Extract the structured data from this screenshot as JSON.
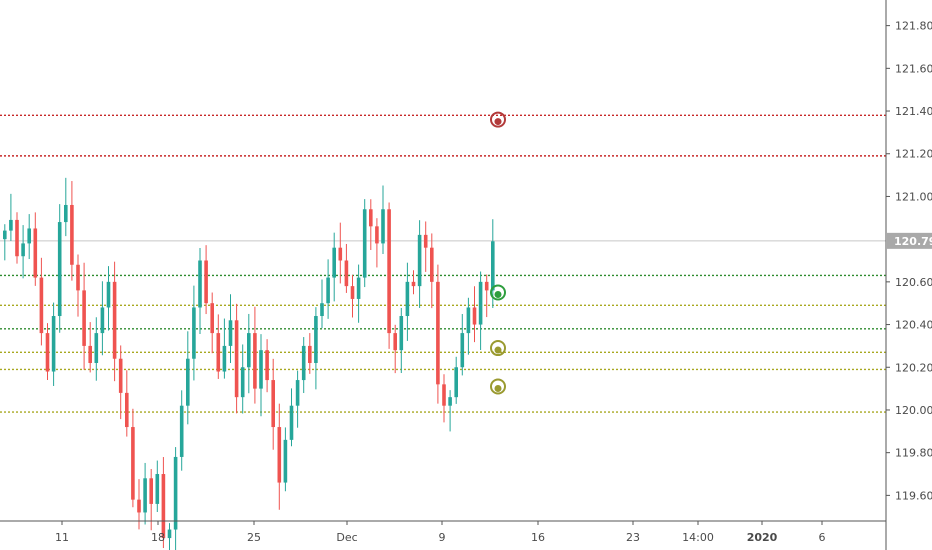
{
  "chart_data": {
    "type": "candlestick",
    "instrument_last_price": "120.792",
    "y_axis": {
      "ylim": [
        119.48,
        121.92
      ],
      "tick_labels": [
        "121.800",
        "121.600",
        "121.400",
        "121.200",
        "121.000",
        "120.600",
        "120.400",
        "120.200",
        "120.000",
        "119.800",
        "119.600"
      ],
      "tick_values": [
        121.8,
        121.6,
        121.4,
        121.2,
        121.0,
        120.6,
        120.4,
        120.2,
        120.0,
        119.8,
        119.6
      ]
    },
    "x_axis": {
      "tick_labels": [
        "11",
        "18",
        "25",
        "Dec",
        "9",
        "16",
        "23",
        "14:00",
        "2020",
        "6"
      ],
      "bold_labels": [
        "2020"
      ]
    },
    "last_price_line": 120.792,
    "horizontal_levels": [
      {
        "value": 121.38,
        "color": "#c62828",
        "style": "dotted"
      },
      {
        "value": 121.19,
        "color": "#c62828",
        "style": "dotted"
      },
      {
        "value": 120.63,
        "color": "#2e8b2e",
        "style": "dotted"
      },
      {
        "value": 120.49,
        "color": "#a8a820",
        "style": "dotted"
      },
      {
        "value": 120.38,
        "color": "#2e8b2e",
        "style": "dotted"
      },
      {
        "value": 120.27,
        "color": "#a8a820",
        "style": "dotted"
      },
      {
        "value": 120.19,
        "color": "#a8a820",
        "style": "dotted"
      },
      {
        "value": 119.99,
        "color": "#a8a820",
        "style": "dotted"
      }
    ],
    "markers": [
      {
        "value": 121.36,
        "color": "#b23a3a",
        "kind": "target-circle"
      },
      {
        "value": 120.55,
        "color": "#2e9e3e",
        "kind": "target-circle"
      },
      {
        "value": 120.29,
        "color": "#9a9a30",
        "kind": "target-circle"
      },
      {
        "value": 120.11,
        "color": "#9a9a30",
        "kind": "target-circle"
      }
    ],
    "colors": {
      "up": "#26a69a",
      "down": "#ef5350",
      "grid": "#e8e8e8",
      "axis": "#555555"
    },
    "candles_close": [
      120.84,
      120.89,
      120.72,
      120.78,
      120.85,
      120.62,
      120.36,
      120.18,
      120.44,
      120.88,
      120.96,
      120.68,
      120.56,
      120.3,
      120.22,
      120.36,
      120.48,
      120.6,
      120.24,
      120.08,
      119.92,
      119.58,
      119.52,
      119.68,
      119.56,
      119.7,
      119.4,
      119.44,
      119.78,
      120.02,
      120.24,
      120.48,
      120.7,
      120.5,
      120.36,
      120.18,
      120.3,
      120.42,
      120.06,
      120.2,
      120.36,
      120.1,
      120.28,
      120.14,
      119.92,
      119.66,
      119.86,
      120.02,
      120.14,
      120.3,
      120.22,
      120.44,
      120.5,
      120.62,
      120.76,
      120.7,
      120.58,
      120.52,
      120.62,
      120.94,
      120.86,
      120.78,
      120.94,
      120.36,
      120.28,
      120.44,
      120.6,
      120.58,
      120.82,
      120.76,
      120.6,
      120.12,
      120.02,
      120.06,
      120.2,
      120.36,
      120.48,
      120.4,
      120.6,
      120.56,
      120.79
    ]
  }
}
